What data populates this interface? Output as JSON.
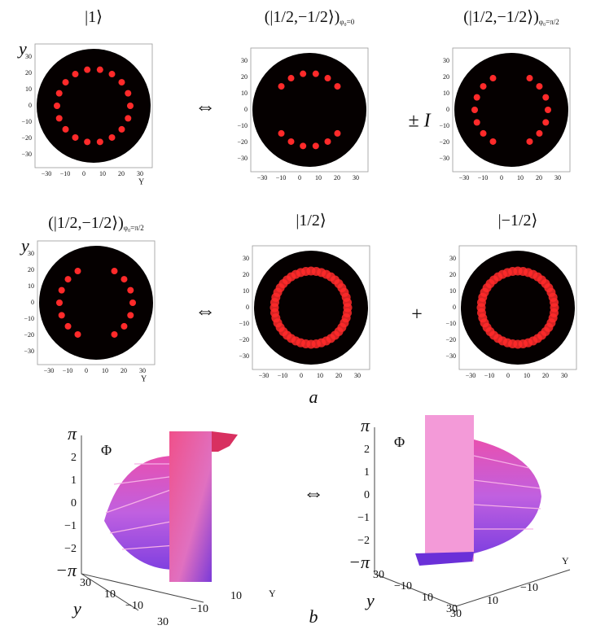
{
  "panel_a": {
    "label": "a",
    "axis_label_y": "y",
    "axis_label_x": "Y",
    "x_ticks": [
      "−30",
      "−10",
      "0",
      "10",
      "20",
      "30"
    ],
    "y_ticks": [
      "30",
      "20",
      "10",
      "0",
      "−10",
      "−20",
      "−30"
    ],
    "plots": [
      {
        "state": "|1⟩"
      },
      {
        "state": "(|1/2,−1/2⟩)",
        "subscript": "φ₀=0"
      },
      {
        "state": "(|1/2,−1/2⟩)",
        "subscript": "φ₀=π/2"
      },
      {
        "state": "(|1/2,−1/2⟩)",
        "subscript": "φ₀=π/2"
      },
      {
        "state": "|1/2⟩"
      },
      {
        "state": "|−1/2⟩"
      }
    ],
    "operators": [
      "⇔",
      "± I",
      "⇔",
      "+"
    ]
  },
  "panel_b": {
    "label": "b",
    "operator": "⇔",
    "z_label": "Φ",
    "y_label": "y",
    "x_label": "Y",
    "z_ticks": [
      "π",
      "2",
      "1",
      "0",
      "−1",
      "−2",
      "−π"
    ],
    "left_y_ticks": [
      "30",
      "10",
      "−10"
    ],
    "left_x_ticks": [
      "30",
      "−10",
      "10"
    ],
    "right_y_ticks": [
      "30",
      "−10",
      "10",
      "30"
    ],
    "right_x_ticks": [
      "30",
      "10",
      "−10"
    ]
  }
}
